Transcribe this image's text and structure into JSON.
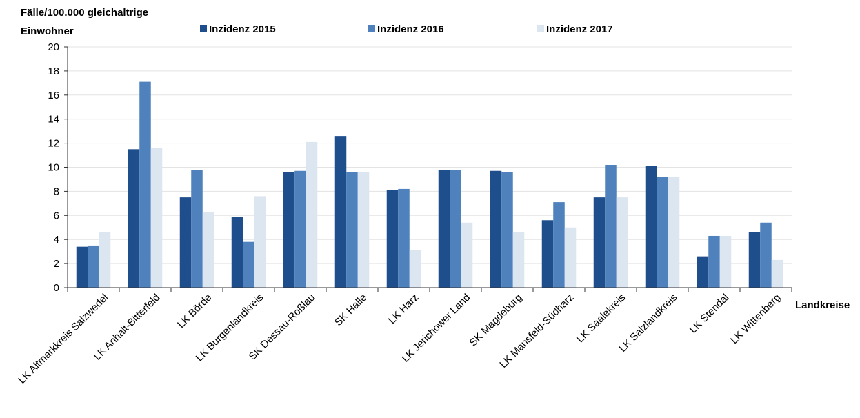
{
  "chart_data": {
    "type": "bar",
    "ylabel_line1": "Fälle/100.000 gleichaltrige",
    "ylabel_line2": "Einwohner",
    "xlabel": "Landkreise",
    "ylim": [
      0,
      20
    ],
    "yticks": [
      0,
      2,
      4,
      6,
      8,
      10,
      12,
      14,
      16,
      18,
      20
    ],
    "grid": true,
    "legend_position": "top",
    "categories": [
      "LK Altmarkkreis Salzwedel",
      "LK Anhalt-Bitterfeld",
      "LK Börde",
      "LK Burgenlandkreis",
      "SK Dessau-Roßlau",
      "SK Halle",
      "LK Harz",
      "LK Jerichower Land",
      "SK Magdeburg",
      "LK Mansfeld-Südharz",
      "LK Saalekreis",
      "LK Salzlandkreis",
      "LK Stendal",
      "LK Wittenberg"
    ],
    "series": [
      {
        "name": "Inzidenz 2015",
        "color": "#1f4e8c",
        "values": [
          3.4,
          11.5,
          7.5,
          5.9,
          9.6,
          12.6,
          8.1,
          9.8,
          9.7,
          5.6,
          7.5,
          10.1,
          2.6,
          4.6
        ]
      },
      {
        "name": "Inzidenz 2016",
        "color": "#4f81bd",
        "values": [
          3.5,
          17.1,
          9.8,
          3.8,
          9.7,
          9.6,
          8.2,
          9.8,
          9.6,
          7.1,
          10.2,
          9.2,
          4.3,
          5.4
        ]
      },
      {
        "name": "Inzidenz 2017",
        "color": "#dce6f1",
        "values": [
          4.6,
          11.6,
          6.3,
          7.6,
          12.1,
          9.6,
          3.1,
          5.4,
          4.6,
          5.0,
          7.5,
          9.2,
          4.3,
          2.3
        ]
      }
    ]
  }
}
